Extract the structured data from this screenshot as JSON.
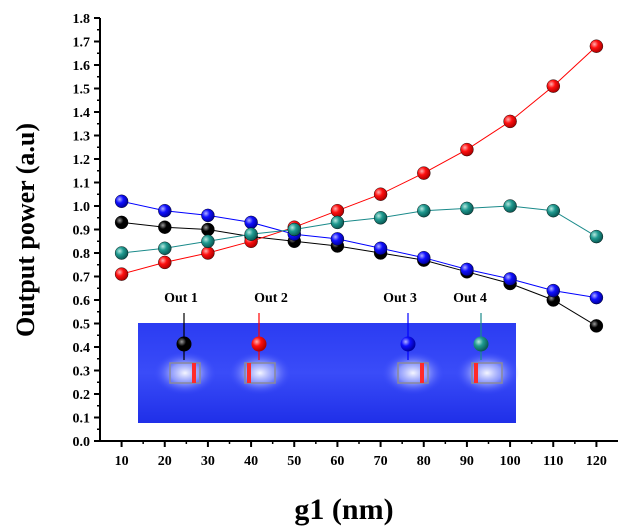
{
  "chart_data": {
    "type": "line",
    "xlabel": "g1 (nm)",
    "ylabel": "Output power (a.u)",
    "xlim": [
      5,
      125
    ],
    "ylim": [
      0.0,
      1.8
    ],
    "x_ticks": [
      10,
      20,
      30,
      40,
      50,
      60,
      70,
      80,
      90,
      100,
      110,
      120
    ],
    "y_ticks": [
      "0.0",
      "0.1",
      "0.2",
      "0.3",
      "0.4",
      "0.5",
      "0.6",
      "0.7",
      "0.8",
      "0.9",
      "1.0",
      "1.1",
      "1.2",
      "1.3",
      "1.4",
      "1.5",
      "1.6",
      "1.7",
      "1.8"
    ],
    "x": [
      10,
      20,
      30,
      40,
      50,
      60,
      70,
      80,
      90,
      100,
      110,
      120
    ],
    "series": [
      {
        "name": "Out 1",
        "color": "#000000",
        "values": [
          0.93,
          0.91,
          0.9,
          0.87,
          0.85,
          0.83,
          0.8,
          0.77,
          0.72,
          0.67,
          0.6,
          0.49
        ]
      },
      {
        "name": "Out 2",
        "color": "#ff0000",
        "values": [
          0.71,
          0.76,
          0.8,
          0.85,
          0.91,
          0.98,
          1.05,
          1.14,
          1.24,
          1.36,
          1.51,
          1.68
        ]
      },
      {
        "name": "Out 3",
        "color": "#0000ff",
        "values": [
          1.02,
          0.98,
          0.96,
          0.93,
          0.88,
          0.86,
          0.82,
          0.78,
          0.73,
          0.69,
          0.64,
          0.61
        ]
      },
      {
        "name": "Out 4",
        "color": "#1a8a8a",
        "values": [
          0.8,
          0.82,
          0.85,
          0.88,
          0.9,
          0.93,
          0.95,
          0.98,
          0.99,
          1.0,
          0.98,
          0.87
        ]
      }
    ],
    "grid": false,
    "inset": {
      "type": "field-map",
      "background": "#2233ee",
      "port_labels": [
        "Out 1",
        "Out 2",
        "Out 3",
        "Out 4"
      ]
    }
  }
}
